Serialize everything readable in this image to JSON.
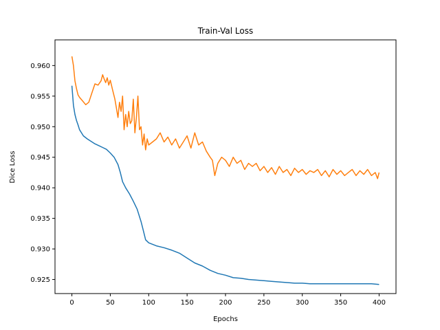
{
  "chart_data": {
    "type": "line",
    "title": "Train-Val Loss",
    "xlabel": "Epochs",
    "ylabel": "Dice Loss",
    "xlim": [
      -22,
      422
    ],
    "ylim": [
      0.9227,
      0.9642
    ],
    "xticks": [
      0,
      50,
      100,
      150,
      200,
      250,
      300,
      350,
      400
    ],
    "yticks": [
      0.925,
      0.93,
      0.935,
      0.94,
      0.945,
      0.95,
      0.955,
      0.96
    ],
    "ytick_labels": [
      "0.925",
      "0.930",
      "0.935",
      "0.940",
      "0.945",
      "0.950",
      "0.955",
      "0.960"
    ],
    "grid": false,
    "legend": "none",
    "series": [
      {
        "color": "#1f77b4",
        "x": [
          0,
          2,
          4,
          6,
          8,
          10,
          15,
          20,
          25,
          30,
          35,
          40,
          45,
          50,
          55,
          60,
          63,
          66,
          70,
          75,
          80,
          85,
          90,
          93,
          96,
          100,
          110,
          120,
          130,
          140,
          150,
          160,
          170,
          180,
          190,
          200,
          210,
          220,
          230,
          240,
          250,
          260,
          270,
          280,
          290,
          300,
          310,
          320,
          330,
          340,
          350,
          360,
          370,
          380,
          390,
          400
        ],
        "y": [
          0.9567,
          0.9535,
          0.952,
          0.951,
          0.9503,
          0.9495,
          0.9485,
          0.948,
          0.9476,
          0.9472,
          0.9469,
          0.9466,
          0.9463,
          0.9457,
          0.945,
          0.9438,
          0.9425,
          0.941,
          0.94,
          0.939,
          0.9378,
          0.9365,
          0.9345,
          0.933,
          0.9315,
          0.931,
          0.9305,
          0.9302,
          0.9298,
          0.9293,
          0.9285,
          0.9277,
          0.9272,
          0.9265,
          0.926,
          0.9257,
          0.9253,
          0.9252,
          0.925,
          0.9249,
          0.9248,
          0.9247,
          0.9246,
          0.9245,
          0.9244,
          0.9244,
          0.9243,
          0.9243,
          0.9243,
          0.9243,
          0.9243,
          0.9243,
          0.9243,
          0.9243,
          0.9243,
          0.9242
        ]
      },
      {
        "color": "#ff7f0e",
        "x": [
          0,
          2,
          4,
          6,
          8,
          10,
          14,
          18,
          22,
          26,
          30,
          34,
          38,
          40,
          42,
          44,
          46,
          48,
          50,
          53,
          56,
          58,
          60,
          62,
          64,
          66,
          68,
          70,
          72,
          74,
          76,
          78,
          80,
          82,
          84,
          86,
          88,
          90,
          92,
          94,
          96,
          98,
          100,
          105,
          110,
          115,
          120,
          125,
          130,
          135,
          140,
          145,
          150,
          155,
          160,
          165,
          170,
          175,
          180,
          183,
          186,
          190,
          195,
          200,
          205,
          210,
          215,
          220,
          225,
          230,
          235,
          240,
          245,
          250,
          255,
          260,
          265,
          270,
          275,
          280,
          285,
          290,
          295,
          300,
          305,
          310,
          315,
          320,
          325,
          330,
          335,
          340,
          345,
          350,
          355,
          360,
          365,
          370,
          375,
          380,
          385,
          390,
          395,
          398,
          400
        ],
        "y": [
          0.9615,
          0.96,
          0.9575,
          0.9562,
          0.9552,
          0.9548,
          0.9542,
          0.9536,
          0.954,
          0.9555,
          0.957,
          0.9568,
          0.9575,
          0.9585,
          0.9578,
          0.9572,
          0.958,
          0.9568,
          0.9576,
          0.956,
          0.9545,
          0.953,
          0.9515,
          0.954,
          0.9525,
          0.955,
          0.9495,
          0.952,
          0.95,
          0.9525,
          0.9505,
          0.951,
          0.9545,
          0.949,
          0.9515,
          0.955,
          0.9495,
          0.95,
          0.947,
          0.9488,
          0.9462,
          0.948,
          0.947,
          0.9475,
          0.948,
          0.949,
          0.9475,
          0.9483,
          0.947,
          0.948,
          0.9465,
          0.9475,
          0.9485,
          0.9465,
          0.949,
          0.947,
          0.9475,
          0.946,
          0.945,
          0.9445,
          0.942,
          0.944,
          0.945,
          0.9445,
          0.9435,
          0.945,
          0.944,
          0.9445,
          0.943,
          0.944,
          0.9435,
          0.944,
          0.9428,
          0.9435,
          0.9425,
          0.9433,
          0.9422,
          0.9435,
          0.9425,
          0.943,
          0.942,
          0.9432,
          0.9425,
          0.943,
          0.9422,
          0.9428,
          0.9425,
          0.943,
          0.942,
          0.9428,
          0.9418,
          0.943,
          0.9422,
          0.9428,
          0.942,
          0.9425,
          0.943,
          0.942,
          0.9428,
          0.9422,
          0.943,
          0.942,
          0.9425,
          0.9415,
          0.9425
        ]
      }
    ]
  }
}
